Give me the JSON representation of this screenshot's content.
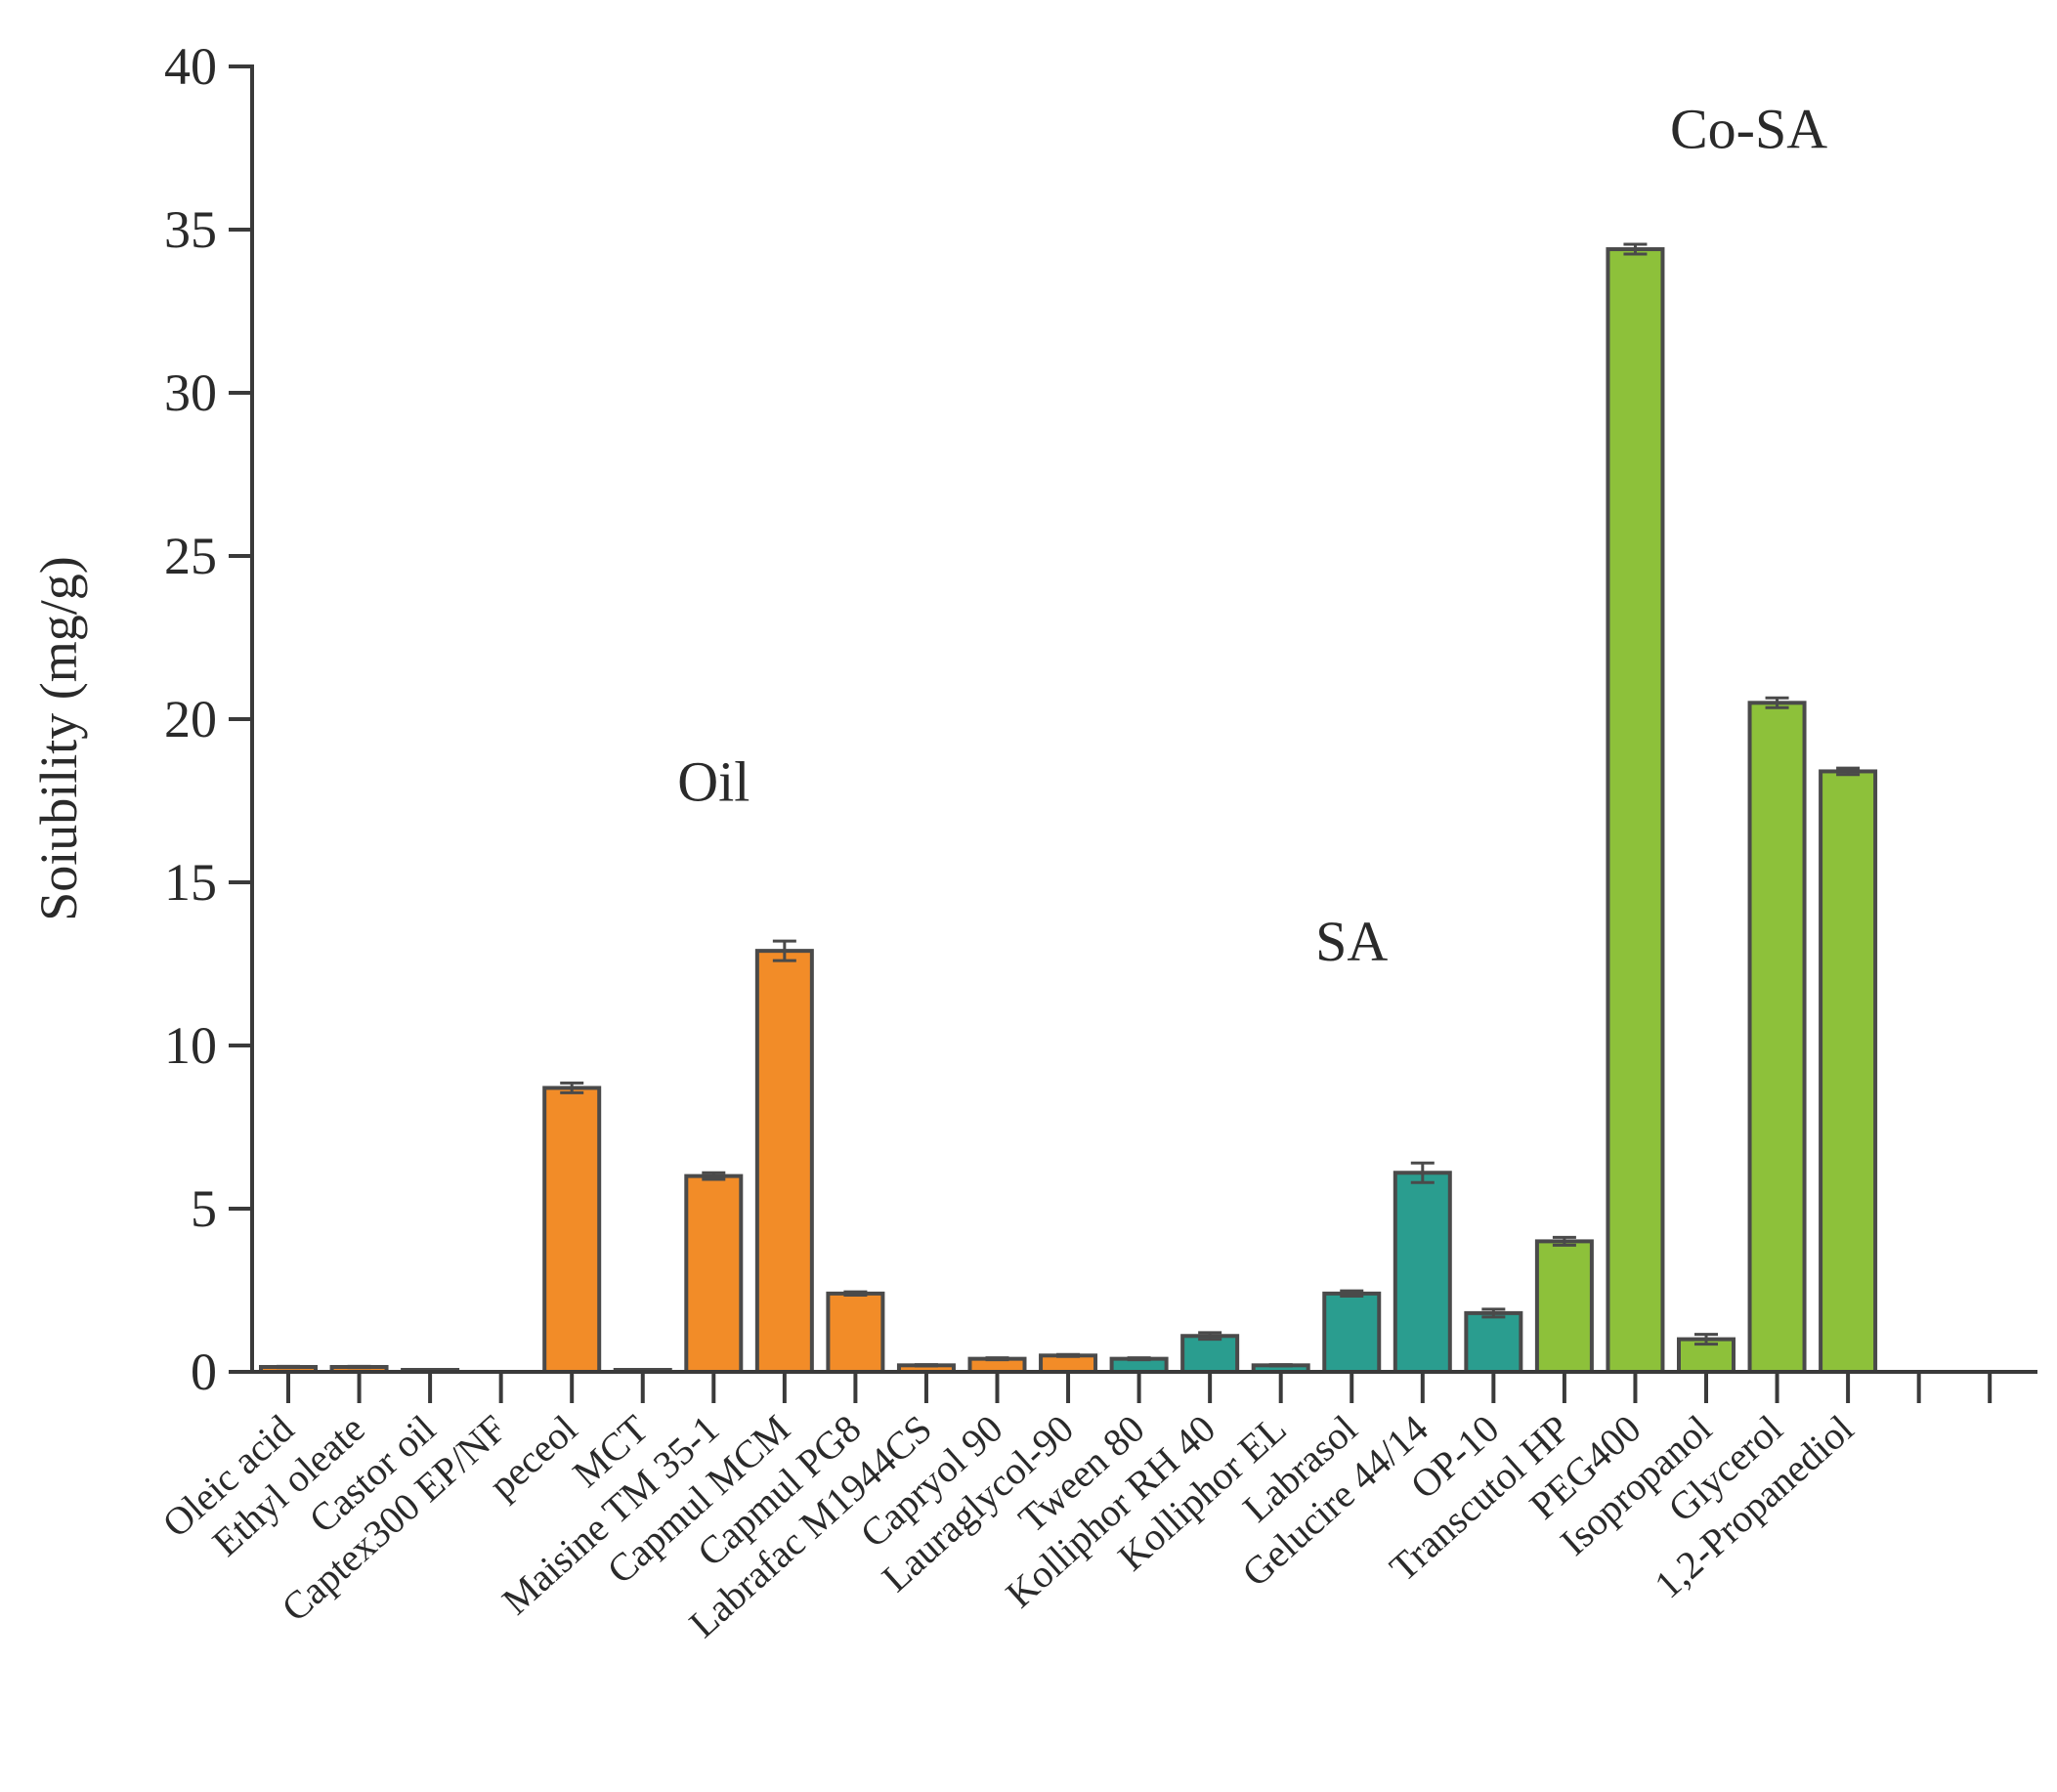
{
  "chart_data": {
    "type": "bar",
    "title": "",
    "xlabel": "",
    "ylabel": "Soiubility (mg/g)",
    "ylim": [
      0,
      40
    ],
    "yticks": [
      0,
      5,
      10,
      15,
      20,
      25,
      30,
      35,
      40
    ],
    "grid": false,
    "categories": [
      "Oleic acid",
      "Ethyl oleate",
      "Castor oil",
      "Captex300 EP/NF",
      "peceol",
      "MCT",
      "Maisine TM 35-1",
      "Capmul MCM",
      "Capmul PG8",
      "Labrafac M1944CS",
      "Capryol 90",
      "Lauraglycol-90",
      "Tween 80",
      "Kolliphor RH 40",
      "Kolliphor EL",
      "Labrasol",
      "Gelucire 44/14",
      "OP-10",
      "Transcutol HP",
      "PEG400",
      "Isopropanol",
      "Glycerol",
      "1,2-Propanediol",
      "",
      ""
    ],
    "values": [
      0.15,
      0.15,
      0.05,
      0,
      8.7,
      0.03,
      6.0,
      12.9,
      2.4,
      0.2,
      0.4,
      0.5,
      0.4,
      1.1,
      0.2,
      2.4,
      6.1,
      1.8,
      4.0,
      34.4,
      1.0,
      20.5,
      18.4,
      0,
      0
    ],
    "errors": [
      0.02,
      0.02,
      0.01,
      0,
      0.15,
      0.01,
      0.1,
      0.3,
      0.05,
      0.02,
      0.03,
      0.03,
      0.03,
      0.1,
      0.02,
      0.08,
      0.3,
      0.12,
      0.12,
      0.15,
      0.15,
      0.15,
      0.1,
      0,
      0
    ],
    "groups": [
      "Oil",
      "Oil",
      "Oil",
      "Oil",
      "Oil",
      "Oil",
      "Oil",
      "Oil",
      "Oil",
      "Oil",
      "Oil",
      "Oil",
      "SA",
      "SA",
      "SA",
      "SA",
      "SA",
      "SA",
      "Co-SA",
      "Co-SA",
      "Co-SA",
      "Co-SA",
      "Co-SA",
      "",
      ""
    ],
    "group_colors": {
      "Oil": "#F28C28",
      "SA": "#2A9D8F",
      "Co-SA": "#8DC13A"
    },
    "annotations": [
      {
        "text": "Oil",
        "x_index": 6,
        "y": 17.5
      },
      {
        "text": "SA",
        "x_index": 15,
        "y": 12.6
      },
      {
        "text": "Co-SA",
        "x_index": 20.6,
        "y": 37.5
      }
    ]
  }
}
